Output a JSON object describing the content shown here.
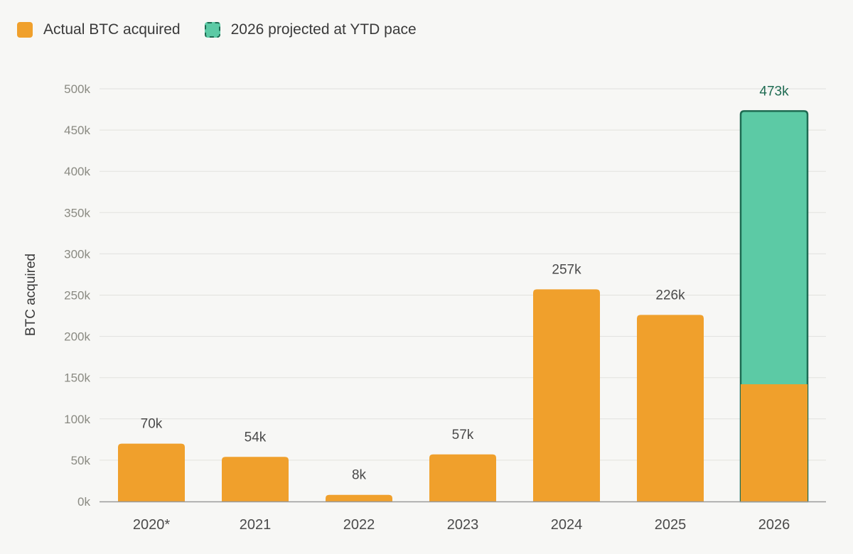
{
  "chart_data": {
    "type": "bar",
    "ylabel": "BTC acquired",
    "xlabel": "",
    "ylim": [
      0,
      500000
    ],
    "y_ticks": [
      {
        "value": 0,
        "label": "0k"
      },
      {
        "value": 50000,
        "label": "50k"
      },
      {
        "value": 100000,
        "label": "100k"
      },
      {
        "value": 150000,
        "label": "150k"
      },
      {
        "value": 200000,
        "label": "200k"
      },
      {
        "value": 250000,
        "label": "250k"
      },
      {
        "value": 300000,
        "label": "300k"
      },
      {
        "value": 350000,
        "label": "350k"
      },
      {
        "value": 400000,
        "label": "400k"
      },
      {
        "value": 450000,
        "label": "450k"
      },
      {
        "value": 500000,
        "label": "500k"
      }
    ],
    "grid": true,
    "legend": [
      {
        "name": "Actual BTC acquired",
        "color": "#f0a02c",
        "style": "solid"
      },
      {
        "name": "2026 projected at YTD pace",
        "color": "#5ccaa5",
        "border": "#1e6b52",
        "style": "dashed"
      }
    ],
    "categories": [
      "2020*",
      "2021",
      "2022",
      "2023",
      "2024",
      "2025",
      "2026"
    ],
    "actual": [
      70000,
      54000,
      8000,
      57000,
      257000,
      226000,
      142000
    ],
    "projected_total": [
      null,
      null,
      null,
      null,
      null,
      null,
      473000
    ],
    "data_labels": [
      "70k",
      "54k",
      "8k",
      "57k",
      "257k",
      "226k",
      "473k"
    ],
    "label_colors": {
      "default": "#4a4a4a",
      "projected": "#1e6b52"
    },
    "colors": {
      "actual": "#f0a02c",
      "projected": "#5ccaa5",
      "projected_border": "#1e6b52",
      "grid": "#e2e2de",
      "axis": "#9a9a9a",
      "tick": "#8a8a82",
      "category": "#4a4a4a"
    }
  }
}
